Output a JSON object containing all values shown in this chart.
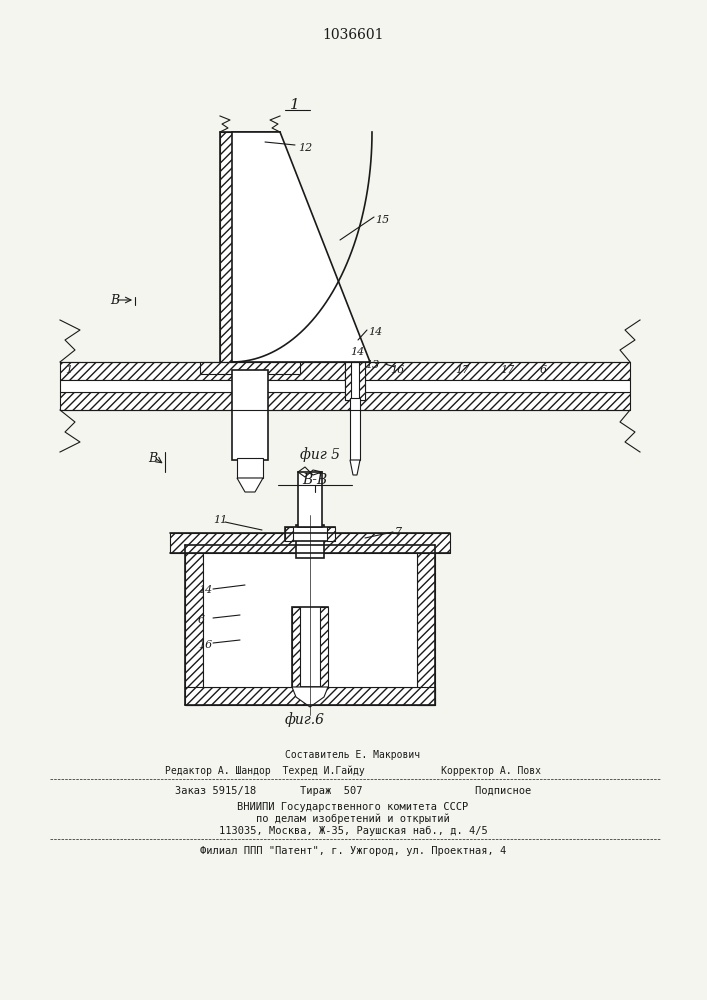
{
  "patent_number": "1036601",
  "fig5_label": "фиг 5",
  "fig6_label": "фиг.6",
  "section_label": "В-В",
  "fig1_label": "1",
  "view_label_B": "В",
  "bg_color": "#f5f5f0",
  "line_color": "#1a1a1a",
  "hatch_color": "#1a1a1a",
  "footer_lines": [
    "Составитель Е. Макрович",
    "Редактор А. Шандор  Техред И.Гайду             Корректор А. Повх",
    "Заказ 5915/18       Тираж  507                  Подписное",
    "ВНИИПИ Государственного комитета СССР",
    "по делам изобретений и открытий",
    "113035, Москва, Ж-35, Раушская наб., д. 4/5",
    "Филиал ППП \"Патент\", г. Ужгород, ул. Проектная, 4"
  ]
}
